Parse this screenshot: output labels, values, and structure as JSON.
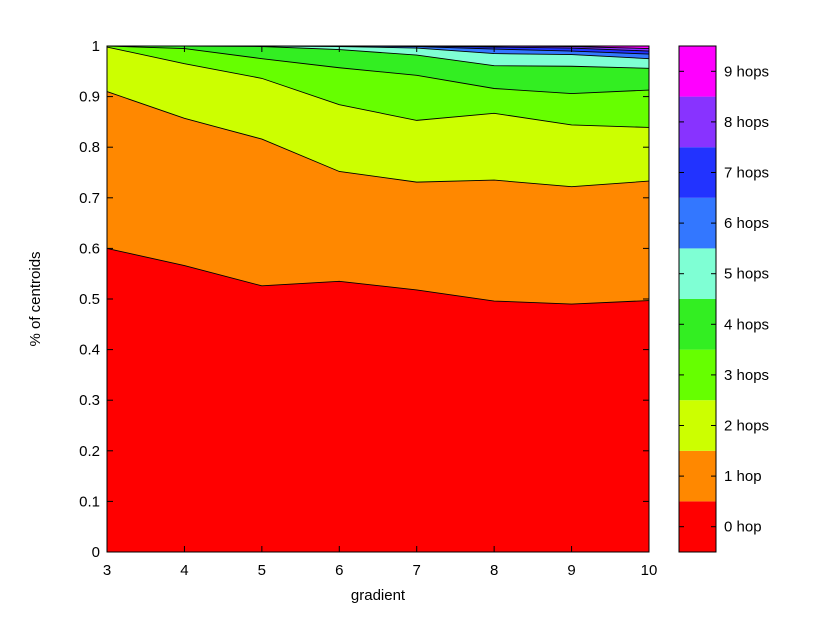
{
  "chart_data": {
    "type": "area",
    "stacked": true,
    "title": "",
    "xlabel": "gradient",
    "ylabel": "% of centroids",
    "x": [
      3,
      4,
      5,
      6,
      7,
      8,
      9,
      10
    ],
    "xlim": [
      3,
      10
    ],
    "ylim": [
      0,
      1
    ],
    "xticks": [
      "3",
      "4",
      "5",
      "6",
      "7",
      "8",
      "9",
      "10"
    ],
    "yticks": [
      "0",
      "0.1",
      "0.2",
      "0.3",
      "0.4",
      "0.5",
      "0.6",
      "0.7",
      "0.8",
      "0.9",
      "1"
    ],
    "grid": false,
    "legend_position": "colorbar-right",
    "cumulative_boundaries": [
      {
        "name": "0 hop",
        "values": [
          0.6,
          0.566,
          0.526,
          0.535,
          0.518,
          0.496,
          0.49,
          0.497
        ]
      },
      {
        "name": "1 hop",
        "values": [
          0.91,
          0.857,
          0.816,
          0.752,
          0.731,
          0.735,
          0.722,
          0.733
        ]
      },
      {
        "name": "2 hops",
        "values": [
          0.998,
          0.965,
          0.936,
          0.884,
          0.853,
          0.867,
          0.844,
          0.839
        ]
      },
      {
        "name": "3 hops",
        "values": [
          1.0,
          0.995,
          0.975,
          0.957,
          0.942,
          0.916,
          0.906,
          0.913
        ]
      },
      {
        "name": "4 hops",
        "values": [
          1.0,
          1.0,
          0.999,
          0.993,
          0.982,
          0.961,
          0.96,
          0.956
        ]
      },
      {
        "name": "5 hops",
        "values": [
          1.0,
          1.0,
          1.0,
          0.999,
          0.996,
          0.985,
          0.983,
          0.975
        ]
      },
      {
        "name": "6 hops",
        "values": [
          1.0,
          1.0,
          1.0,
          1.0,
          0.999,
          0.994,
          0.99,
          0.984
        ]
      },
      {
        "name": "7 hops",
        "values": [
          1.0,
          1.0,
          1.0,
          1.0,
          1.0,
          0.998,
          0.996,
          0.99
        ]
      },
      {
        "name": "8 hops",
        "values": [
          1.0,
          1.0,
          1.0,
          1.0,
          1.0,
          1.0,
          0.999,
          0.995
        ]
      },
      {
        "name": "9 hops",
        "values": [
          1.0,
          1.0,
          1.0,
          1.0,
          1.0,
          1.0,
          1.0,
          1.0
        ]
      }
    ],
    "colors": [
      "#ff0000",
      "#ff8800",
      "#ccff00",
      "#66ff00",
      "#33ee22",
      "#7fffd4",
      "#3377ff",
      "#2233ff",
      "#8833ff",
      "#ff00ff"
    ],
    "colorbar_labels": [
      "0 hop",
      "1 hop",
      "2 hops",
      "3 hops",
      "4 hops",
      "5 hops",
      "6 hops",
      "7 hops",
      "8 hops",
      "9 hops"
    ]
  }
}
